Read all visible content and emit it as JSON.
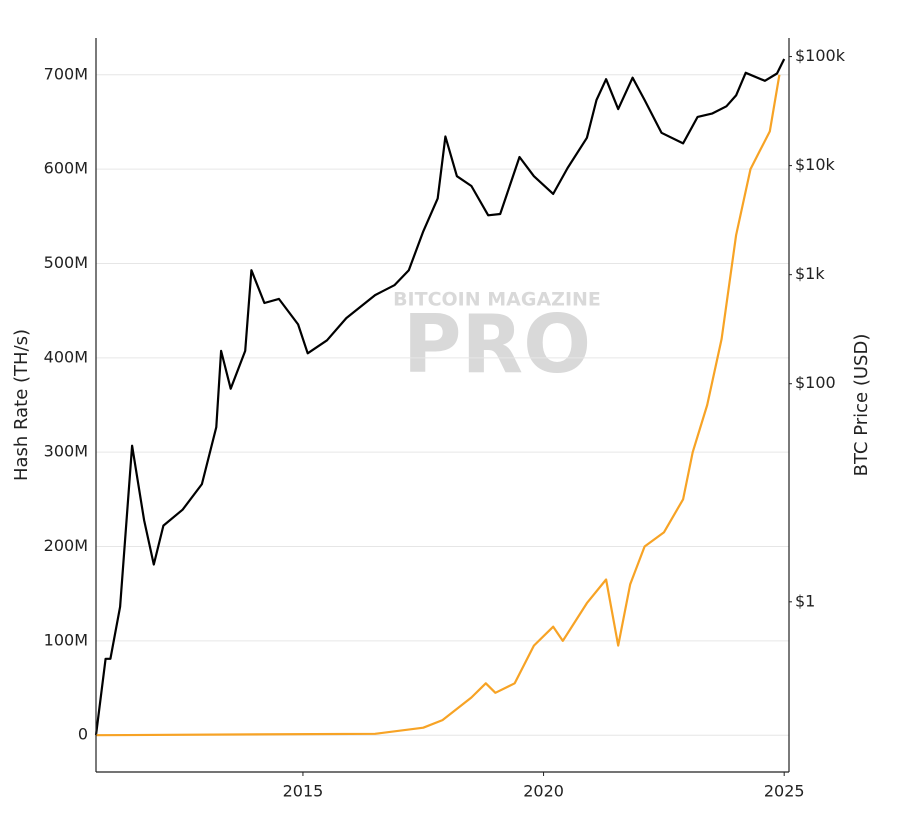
{
  "chart_data": {
    "type": "line",
    "ylabel": "Hash Rate (TH/s)",
    "y2label": "BTC Price (USD)",
    "watermark": [
      "BITCOIN MAGAZINE",
      "PRO"
    ],
    "xlim": [
      2010.7,
      2025.1
    ],
    "xticks": [
      2015,
      2020,
      2025
    ],
    "ylim": [
      -39000000,
      739000000
    ],
    "yticks": [
      {
        "value": 0,
        "label": "0"
      },
      {
        "value": 100000000,
        "label": "100M"
      },
      {
        "value": 200000000,
        "label": "200M"
      },
      {
        "value": 300000000,
        "label": "300M"
      },
      {
        "value": 400000000,
        "label": "400M"
      },
      {
        "value": 500000000,
        "label": "500M"
      },
      {
        "value": 600000000,
        "label": "600M"
      },
      {
        "value": 700000000,
        "label": "700M"
      }
    ],
    "y2lim": [
      0.0275,
      148000
    ],
    "y2scale": "log",
    "y2ticks": [
      {
        "value": 1,
        "label": "$1"
      },
      {
        "value": 100,
        "label": "$100"
      },
      {
        "value": 1000,
        "label": "$1k"
      },
      {
        "value": 10000,
        "label": "$10k"
      },
      {
        "value": 100000,
        "label": "$100k"
      }
    ],
    "grid": true,
    "series": [
      {
        "color": "#000000",
        "axis": "y2",
        "x": [
          2010.7,
          2010.9,
          2011.0,
          2011.2,
          2011.45,
          2011.7,
          2011.9,
          2012.1,
          2012.5,
          2012.9,
          2013.2,
          2013.3,
          2013.5,
          2013.8,
          2013.93,
          2014.2,
          2014.5,
          2014.9,
          2015.1,
          2015.5,
          2015.9,
          2016.5,
          2016.9,
          2017.2,
          2017.5,
          2017.8,
          2017.96,
          2018.2,
          2018.5,
          2018.85,
          2019.1,
          2019.5,
          2019.8,
          2020.2,
          2020.5,
          2020.9,
          2021.1,
          2021.3,
          2021.55,
          2021.85,
          2022.1,
          2022.45,
          2022.9,
          2023.2,
          2023.5,
          2023.8,
          2024.0,
          2024.2,
          2024.6,
          2024.85,
          2025.0
        ],
        "values": [
          0.06,
          0.3,
          0.3,
          0.9,
          27,
          5.6,
          2.2,
          5,
          7,
          12,
          40,
          200,
          90,
          200,
          1100,
          550,
          600,
          350,
          190,
          250,
          400,
          650,
          800,
          1100,
          2500,
          5000,
          18500,
          8000,
          6500,
          3500,
          3600,
          12000,
          8000,
          5500,
          9500,
          18000,
          40000,
          62000,
          33000,
          64000,
          40000,
          20000,
          16000,
          28000,
          30000,
          35000,
          44000,
          71000,
          60000,
          70000,
          95000
        ]
      },
      {
        "color": "#f7a325",
        "axis": "y",
        "x": [
          2010.7,
          2016.5,
          2017.5,
          2017.9,
          2018.5,
          2018.8,
          2019.0,
          2019.4,
          2019.8,
          2020.2,
          2020.4,
          2020.9,
          2021.3,
          2021.55,
          2021.8,
          2022.1,
          2022.5,
          2022.9,
          2023.1,
          2023.4,
          2023.7,
          2024.0,
          2024.3,
          2024.5,
          2024.7,
          2024.9
        ],
        "values": [
          0,
          1500000,
          8000000,
          16000000,
          40000000,
          55000000,
          45000000,
          55000000,
          95000000,
          115000000,
          100000000,
          140000000,
          165000000,
          95000000,
          160000000,
          200000000,
          215000000,
          250000000,
          300000000,
          350000000,
          420000000,
          530000000,
          600000000,
          620000000,
          640000000,
          700000000
        ]
      }
    ]
  }
}
